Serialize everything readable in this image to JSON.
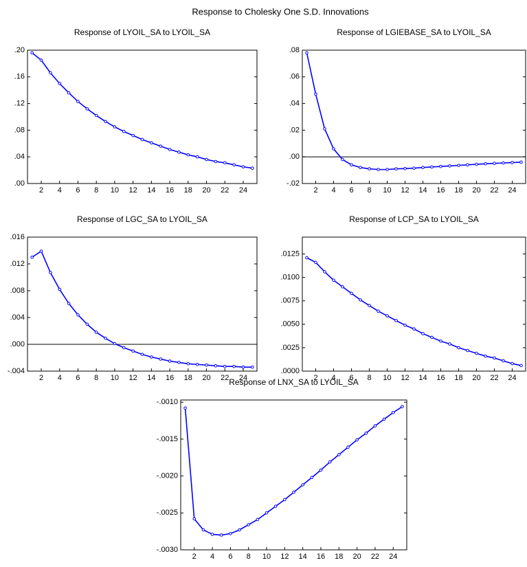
{
  "title": "Response to Cholesky One S.D. Innovations",
  "chart_data": [
    {
      "type": "line",
      "title": "Response of LYOIL_SA to LYOIL_SA",
      "x": [
        1,
        2,
        3,
        4,
        5,
        6,
        7,
        8,
        9,
        10,
        11,
        12,
        13,
        14,
        15,
        16,
        17,
        18,
        19,
        20,
        21,
        22,
        23,
        24,
        25
      ],
      "series": [
        {
          "color": "#0000ff",
          "values": [
            0.196,
            0.185,
            0.166,
            0.15,
            0.136,
            0.123,
            0.112,
            0.102,
            0.093,
            0.085,
            0.078,
            0.072,
            0.066,
            0.061,
            0.056,
            0.051,
            0.047,
            0.043,
            0.04,
            0.036,
            0.033,
            0.031,
            0.028,
            0.025,
            0.023
          ]
        }
      ],
      "xlim": [
        0.5,
        25.5
      ],
      "xticks": [
        2,
        4,
        6,
        8,
        10,
        12,
        14,
        16,
        18,
        20,
        22,
        24
      ],
      "ylim": [
        0,
        0.2
      ],
      "yticks": [
        {
          "value": 0,
          "label": ".00"
        },
        {
          "value": 0.04,
          "label": ".04"
        },
        {
          "value": 0.08,
          "label": ".08"
        },
        {
          "value": 0.12,
          "label": ".12"
        },
        {
          "value": 0.16,
          "label": ".16"
        },
        {
          "value": 0.2,
          "label": ".20"
        }
      ],
      "zero_line": false,
      "markers": true
    },
    {
      "type": "line",
      "title": "Response of LGIEBASE_SA to LYOIL_SA",
      "x": [
        1,
        2,
        3,
        4,
        5,
        6,
        7,
        8,
        9,
        10,
        11,
        12,
        13,
        14,
        15,
        16,
        17,
        18,
        19,
        20,
        21,
        22,
        23,
        24,
        25
      ],
      "series": [
        {
          "color": "#0000ff",
          "values": [
            0.078,
            0.047,
            0.021,
            0.006,
            -0.002,
            -0.006,
            -0.008,
            -0.009,
            -0.0095,
            -0.0095,
            -0.009,
            -0.0088,
            -0.0085,
            -0.008,
            -0.0076,
            -0.0072,
            -0.0068,
            -0.0064,
            -0.006,
            -0.0056,
            -0.0052,
            -0.0049,
            -0.0046,
            -0.0043,
            -0.004
          ]
        }
      ],
      "xlim": [
        0.5,
        25.5
      ],
      "xticks": [
        2,
        4,
        6,
        8,
        10,
        12,
        14,
        16,
        18,
        20,
        22,
        24
      ],
      "ylim": [
        -0.02,
        0.08
      ],
      "yticks": [
        {
          "value": -0.02,
          "label": "-.02"
        },
        {
          "value": 0,
          "label": ".00"
        },
        {
          "value": 0.02,
          "label": ".02"
        },
        {
          "value": 0.04,
          "label": ".04"
        },
        {
          "value": 0.06,
          "label": ".06"
        },
        {
          "value": 0.08,
          "label": ".08"
        }
      ],
      "zero_line": true,
      "markers": true
    },
    {
      "type": "line",
      "title": "Response of LGC_SA to LYOIL_SA",
      "x": [
        1,
        2,
        3,
        4,
        5,
        6,
        7,
        8,
        9,
        10,
        11,
        12,
        13,
        14,
        15,
        16,
        17,
        18,
        19,
        20,
        21,
        22,
        23,
        24,
        25
      ],
      "series": [
        {
          "color": "#0000ff",
          "values": [
            0.013,
            0.0139,
            0.0107,
            0.0082,
            0.0061,
            0.0044,
            0.003,
            0.0018,
            0.0009,
            0.0001,
            -0.0005,
            -0.001,
            -0.0015,
            -0.0019,
            -0.0022,
            -0.0025,
            -0.0027,
            -0.0029,
            -0.003,
            -0.0031,
            -0.0032,
            -0.0033,
            -0.0033,
            -0.0034,
            -0.0034
          ]
        }
      ],
      "xlim": [
        0.5,
        25.5
      ],
      "xticks": [
        2,
        4,
        6,
        8,
        10,
        12,
        14,
        16,
        18,
        20,
        22,
        24
      ],
      "ylim": [
        -0.004,
        0.016
      ],
      "yticks": [
        {
          "value": -0.004,
          "label": "-.004"
        },
        {
          "value": 0,
          "label": ".000"
        },
        {
          "value": 0.004,
          "label": ".004"
        },
        {
          "value": 0.008,
          "label": ".008"
        },
        {
          "value": 0.012,
          "label": ".012"
        },
        {
          "value": 0.016,
          "label": ".016"
        }
      ],
      "zero_line": true,
      "markers": true
    },
    {
      "type": "line",
      "title": "Response of LCP_SA to LYOIL_SA",
      "x": [
        1,
        2,
        3,
        4,
        5,
        6,
        7,
        8,
        9,
        10,
        11,
        12,
        13,
        14,
        15,
        16,
        17,
        18,
        19,
        20,
        21,
        22,
        23,
        24,
        25
      ],
      "series": [
        {
          "color": "#0000ff",
          "values": [
            0.0121,
            0.0116,
            0.0106,
            0.0097,
            0.009,
            0.0083,
            0.0076,
            0.007,
            0.0064,
            0.0059,
            0.0054,
            0.0049,
            0.0045,
            0.004,
            0.0036,
            0.0032,
            0.0029,
            0.0025,
            0.0022,
            0.0019,
            0.0016,
            0.0014,
            0.0011,
            0.0008,
            0.0006
          ]
        }
      ],
      "xlim": [
        0.5,
        25.5
      ],
      "xticks": [
        2,
        4,
        6,
        8,
        10,
        12,
        14,
        16,
        18,
        20,
        22,
        24
      ],
      "ylim": [
        0,
        0.0143
      ],
      "yticks": [
        {
          "value": 0,
          "label": ".0000"
        },
        {
          "value": 0.0025,
          "label": ".0025"
        },
        {
          "value": 0.005,
          "label": ".0050"
        },
        {
          "value": 0.0075,
          "label": ".0075"
        },
        {
          "value": 0.01,
          "label": ".0100"
        },
        {
          "value": 0.0125,
          "label": ".0125"
        }
      ],
      "zero_line": false,
      "markers": true
    },
    {
      "type": "line",
      "title": "Response of LNX_SA to LYOIL_SA",
      "x": [
        1,
        2,
        3,
        4,
        5,
        6,
        7,
        8,
        9,
        10,
        11,
        12,
        13,
        14,
        15,
        16,
        17,
        18,
        19,
        20,
        21,
        22,
        23,
        24,
        25
      ],
      "series": [
        {
          "color": "#0000ff",
          "values": [
            -0.00108,
            -0.00258,
            -0.00273,
            -0.00279,
            -0.0028,
            -0.00278,
            -0.00273,
            -0.00266,
            -0.00259,
            -0.0025,
            -0.00241,
            -0.00232,
            -0.00222,
            -0.00212,
            -0.00202,
            -0.00192,
            -0.00181,
            -0.00171,
            -0.00161,
            -0.00151,
            -0.00142,
            -0.00132,
            -0.00123,
            -0.00114,
            -0.00106
          ]
        }
      ],
      "xlim": [
        0.5,
        25.5
      ],
      "xticks": [
        2,
        4,
        6,
        8,
        10,
        12,
        14,
        16,
        18,
        20,
        22,
        24
      ],
      "ylim": [
        -0.003,
        -0.00097
      ],
      "yticks": [
        {
          "value": -0.003,
          "label": "-.0030"
        },
        {
          "value": -0.0025,
          "label": "-.0025"
        },
        {
          "value": -0.002,
          "label": "-.0020"
        },
        {
          "value": -0.0015,
          "label": "-.0015"
        },
        {
          "value": -0.001,
          "label": "-.0010"
        }
      ],
      "zero_line": false,
      "markers": true
    }
  ]
}
